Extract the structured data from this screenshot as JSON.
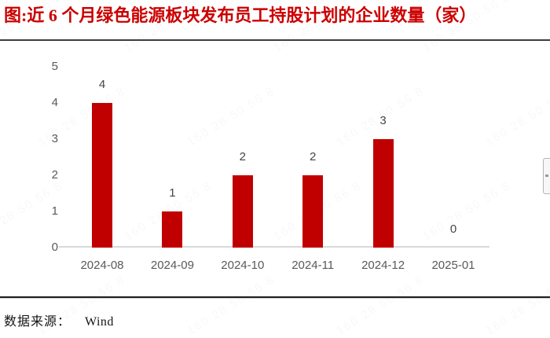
{
  "page": {
    "title": "图:近 6 个月绿色能源板块发布员工持股计划的企业数量（家）",
    "source_label": "数据来源：",
    "source_value": "Wind",
    "watermark_text": "160 28 50 56 8"
  },
  "colors": {
    "title_red": "#cc0000",
    "bar_red": "#c00000",
    "axis_label_gray": "#595959",
    "value_label_gray": "#454545",
    "baseline_gray": "#d9d9d9",
    "rule_dark": "#1f1f1f"
  },
  "chart_data": {
    "type": "bar",
    "title": "近 6 个月绿色能源板块发布员工持股计划的企业数量（家）",
    "categories": [
      "2024-08",
      "2024-09",
      "2024-10",
      "2024-11",
      "2024-12",
      "2025-01"
    ],
    "values": [
      4,
      1,
      2,
      2,
      3,
      0
    ],
    "xlabel": "",
    "ylabel": "",
    "ylim": [
      0,
      5
    ],
    "yticks": [
      0,
      1,
      2,
      3,
      4,
      5
    ],
    "grid": false,
    "legend": "none",
    "data_labels": true,
    "bar_color": "#c00000"
  }
}
